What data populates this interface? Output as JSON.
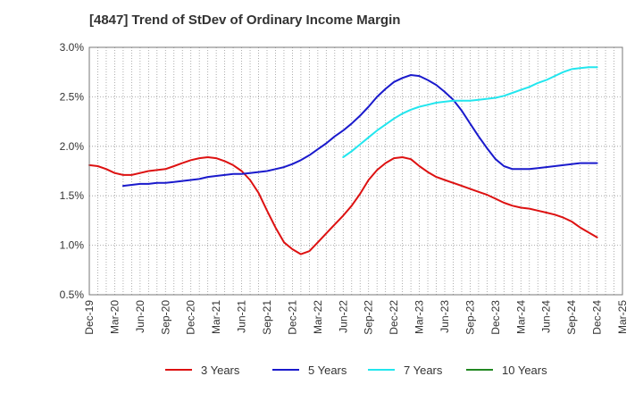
{
  "chart_data": {
    "type": "line",
    "title": "[4847]  Trend of StDev of Ordinary Income Margin",
    "xlabel": "",
    "ylabel": "",
    "ylim": [
      0.5,
      3.0
    ],
    "yticks": [
      0.5,
      1.0,
      1.5,
      2.0,
      2.5,
      3.0
    ],
    "ytick_labels": [
      "0.5%",
      "1.0%",
      "1.5%",
      "2.0%",
      "2.5%",
      "3.0%"
    ],
    "xlim": [
      "2019-12",
      "2025-03"
    ],
    "xtick_labels": [
      "Dec-19",
      "Mar-20",
      "Jun-20",
      "Sep-20",
      "Dec-20",
      "Mar-21",
      "Jun-21",
      "Sep-21",
      "Dec-21",
      "Mar-22",
      "Jun-22",
      "Sep-22",
      "Dec-22",
      "Mar-23",
      "Jun-23",
      "Sep-23",
      "Dec-23",
      "Mar-24",
      "Jun-24",
      "Sep-24",
      "Dec-24",
      "Mar-25"
    ],
    "grid": true,
    "legend_position": "bottom",
    "series": [
      {
        "name": "3 Years",
        "color": "#dd1111",
        "points": [
          [
            "2019-12",
            1.81
          ],
          [
            "2020-01",
            1.8
          ],
          [
            "2020-02",
            1.77
          ],
          [
            "2020-03",
            1.73
          ],
          [
            "2020-04",
            1.71
          ],
          [
            "2020-05",
            1.71
          ],
          [
            "2020-06",
            1.73
          ],
          [
            "2020-07",
            1.75
          ],
          [
            "2020-08",
            1.76
          ],
          [
            "2020-09",
            1.77
          ],
          [
            "2020-10",
            1.8
          ],
          [
            "2020-11",
            1.83
          ],
          [
            "2020-12",
            1.86
          ],
          [
            "2021-01",
            1.88
          ],
          [
            "2021-02",
            1.89
          ],
          [
            "2021-03",
            1.88
          ],
          [
            "2021-04",
            1.85
          ],
          [
            "2021-05",
            1.81
          ],
          [
            "2021-06",
            1.75
          ],
          [
            "2021-07",
            1.66
          ],
          [
            "2021-08",
            1.53
          ],
          [
            "2021-09",
            1.35
          ],
          [
            "2021-10",
            1.18
          ],
          [
            "2021-11",
            1.03
          ],
          [
            "2021-12",
            0.96
          ],
          [
            "2022-01",
            0.91
          ],
          [
            "2022-02",
            0.94
          ],
          [
            "2022-03",
            1.03
          ],
          [
            "2022-04",
            1.12
          ],
          [
            "2022-05",
            1.21
          ],
          [
            "2022-06",
            1.3
          ],
          [
            "2022-07",
            1.4
          ],
          [
            "2022-08",
            1.52
          ],
          [
            "2022-09",
            1.66
          ],
          [
            "2022-10",
            1.76
          ],
          [
            "2022-11",
            1.83
          ],
          [
            "2022-12",
            1.88
          ],
          [
            "2023-01",
            1.89
          ],
          [
            "2023-02",
            1.87
          ],
          [
            "2023-03",
            1.8
          ],
          [
            "2023-04",
            1.74
          ],
          [
            "2023-05",
            1.69
          ],
          [
            "2023-06",
            1.66
          ],
          [
            "2023-07",
            1.63
          ],
          [
            "2023-08",
            1.6
          ],
          [
            "2023-09",
            1.57
          ],
          [
            "2023-10",
            1.54
          ],
          [
            "2023-11",
            1.51
          ],
          [
            "2023-12",
            1.47
          ],
          [
            "2024-01",
            1.43
          ],
          [
            "2024-02",
            1.4
          ],
          [
            "2024-03",
            1.38
          ],
          [
            "2024-04",
            1.37
          ],
          [
            "2024-05",
            1.35
          ],
          [
            "2024-06",
            1.33
          ],
          [
            "2024-07",
            1.31
          ],
          [
            "2024-08",
            1.28
          ],
          [
            "2024-09",
            1.24
          ],
          [
            "2024-10",
            1.18
          ],
          [
            "2024-11",
            1.13
          ],
          [
            "2024-12",
            1.08
          ]
        ]
      },
      {
        "name": "5 Years",
        "color": "#1a1acc",
        "points": [
          [
            "2020-04",
            1.6
          ],
          [
            "2020-05",
            1.61
          ],
          [
            "2020-06",
            1.62
          ],
          [
            "2020-07",
            1.62
          ],
          [
            "2020-08",
            1.63
          ],
          [
            "2020-09",
            1.63
          ],
          [
            "2020-10",
            1.64
          ],
          [
            "2020-11",
            1.65
          ],
          [
            "2020-12",
            1.66
          ],
          [
            "2021-01",
            1.67
          ],
          [
            "2021-02",
            1.69
          ],
          [
            "2021-03",
            1.7
          ],
          [
            "2021-04",
            1.71
          ],
          [
            "2021-05",
            1.72
          ],
          [
            "2021-06",
            1.72
          ],
          [
            "2021-07",
            1.73
          ],
          [
            "2021-08",
            1.74
          ],
          [
            "2021-09",
            1.75
          ],
          [
            "2021-10",
            1.77
          ],
          [
            "2021-11",
            1.79
          ],
          [
            "2021-12",
            1.82
          ],
          [
            "2022-01",
            1.86
          ],
          [
            "2022-02",
            1.91
          ],
          [
            "2022-03",
            1.97
          ],
          [
            "2022-04",
            2.03
          ],
          [
            "2022-05",
            2.1
          ],
          [
            "2022-06",
            2.16
          ],
          [
            "2022-07",
            2.23
          ],
          [
            "2022-08",
            2.31
          ],
          [
            "2022-09",
            2.4
          ],
          [
            "2022-10",
            2.5
          ],
          [
            "2022-11",
            2.58
          ],
          [
            "2022-12",
            2.65
          ],
          [
            "2023-01",
            2.69
          ],
          [
            "2023-02",
            2.72
          ],
          [
            "2023-03",
            2.71
          ],
          [
            "2023-04",
            2.67
          ],
          [
            "2023-05",
            2.62
          ],
          [
            "2023-06",
            2.55
          ],
          [
            "2023-07",
            2.47
          ],
          [
            "2023-08",
            2.36
          ],
          [
            "2023-09",
            2.23
          ],
          [
            "2023-10",
            2.1
          ],
          [
            "2023-11",
            1.98
          ],
          [
            "2023-12",
            1.87
          ],
          [
            "2024-01",
            1.8
          ],
          [
            "2024-02",
            1.77
          ],
          [
            "2024-03",
            1.77
          ],
          [
            "2024-04",
            1.77
          ],
          [
            "2024-05",
            1.78
          ],
          [
            "2024-06",
            1.79
          ],
          [
            "2024-07",
            1.8
          ],
          [
            "2024-08",
            1.81
          ],
          [
            "2024-09",
            1.82
          ],
          [
            "2024-10",
            1.83
          ],
          [
            "2024-11",
            1.83
          ],
          [
            "2024-12",
            1.83
          ]
        ]
      },
      {
        "name": "7 Years",
        "color": "#22e6ee",
        "points": [
          [
            "2022-06",
            1.89
          ],
          [
            "2022-07",
            1.95
          ],
          [
            "2022-08",
            2.02
          ],
          [
            "2022-09",
            2.09
          ],
          [
            "2022-10",
            2.16
          ],
          [
            "2022-11",
            2.22
          ],
          [
            "2022-12",
            2.28
          ],
          [
            "2023-01",
            2.33
          ],
          [
            "2023-02",
            2.37
          ],
          [
            "2023-03",
            2.4
          ],
          [
            "2023-04",
            2.42
          ],
          [
            "2023-05",
            2.44
          ],
          [
            "2023-06",
            2.45
          ],
          [
            "2023-07",
            2.46
          ],
          [
            "2023-08",
            2.46
          ],
          [
            "2023-09",
            2.46
          ],
          [
            "2023-10",
            2.47
          ],
          [
            "2023-11",
            2.48
          ],
          [
            "2023-12",
            2.49
          ],
          [
            "2024-01",
            2.51
          ],
          [
            "2024-02",
            2.54
          ],
          [
            "2024-03",
            2.57
          ],
          [
            "2024-04",
            2.6
          ],
          [
            "2024-05",
            2.64
          ],
          [
            "2024-06",
            2.67
          ],
          [
            "2024-07",
            2.71
          ],
          [
            "2024-08",
            2.75
          ],
          [
            "2024-09",
            2.78
          ],
          [
            "2024-10",
            2.79
          ],
          [
            "2024-11",
            2.8
          ],
          [
            "2024-12",
            2.8
          ]
        ]
      },
      {
        "name": "10 Years",
        "color": "#228822",
        "points": []
      }
    ]
  }
}
